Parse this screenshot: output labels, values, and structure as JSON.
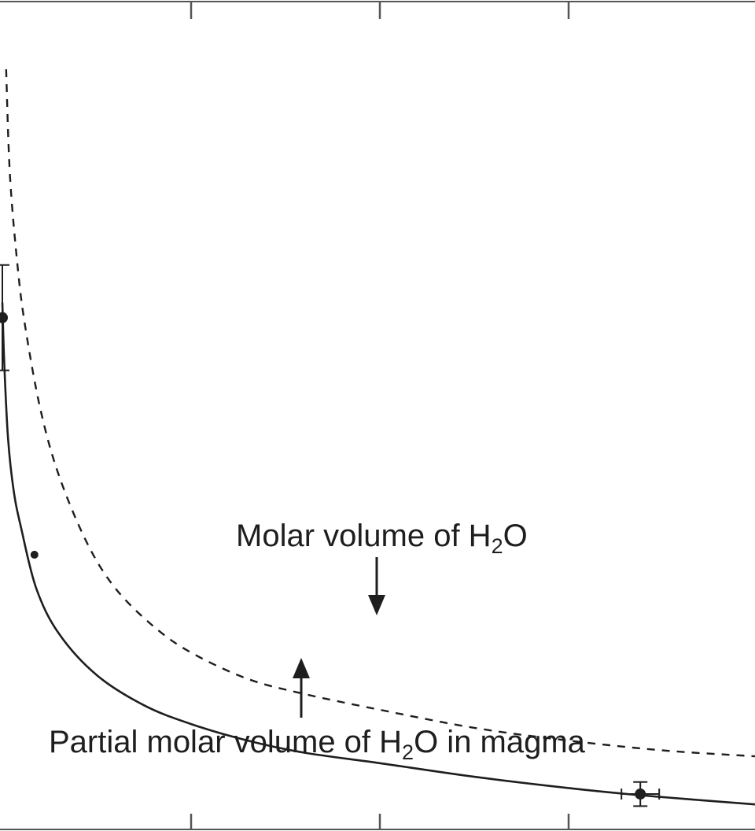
{
  "chart_data": {
    "type": "line",
    "title": "",
    "xlabel": "",
    "ylabel": "",
    "grid": false,
    "series": [
      {
        "name": "Molar volume of H₂O",
        "style": "dashed",
        "color": "#1e1e1e",
        "x": [
          0.02,
          0.04,
          0.08,
          0.12,
          0.2,
          0.3,
          0.45,
          0.6,
          0.8,
          1.0,
          1.3,
          1.6,
          1.98,
          2.5,
          3.0,
          3.5,
          4.0
        ],
        "y": [
          1.01,
          0.87,
          0.75,
          0.67,
          0.56,
          0.47,
          0.38,
          0.32,
          0.27,
          0.235,
          0.2,
          0.18,
          0.16,
          0.135,
          0.118,
          0.105,
          0.097
        ]
      },
      {
        "name": "Partial molar volume of H₂O in magma",
        "style": "solid",
        "color": "#1e1e1e",
        "x": [
          0.0,
          0.01,
          0.03,
          0.06,
          0.1,
          0.18,
          0.3,
          0.5,
          0.75,
          1.0,
          1.3,
          1.6,
          2.0,
          2.5,
          3.0,
          3.4,
          4.0
        ],
        "y": [
          0.7,
          0.62,
          0.52,
          0.45,
          0.4,
          0.32,
          0.26,
          0.205,
          0.165,
          0.14,
          0.118,
          0.102,
          0.088,
          0.07,
          0.055,
          0.045,
          0.033
        ]
      }
    ],
    "points": [
      {
        "x": 0.0,
        "y": 0.68,
        "yerr": 0.07,
        "xerr": 0.0
      },
      {
        "x": 0.17,
        "y": 0.365,
        "yerr": 0.0,
        "xerr": 0.0
      },
      {
        "x": 3.38,
        "y": 0.047,
        "yerr": 0.016,
        "xerr": 0.1
      }
    ],
    "annotations": [
      {
        "parts": [
          {
            "text": "Molar volume of H",
            "sub": false
          },
          {
            "text": "2",
            "sub": true
          },
          {
            "text": "O",
            "sub": false
          }
        ],
        "arrow_to_series": 0,
        "arrow_direction": "down"
      },
      {
        "parts": [
          {
            "text": "Partial molar volume of H",
            "sub": false
          },
          {
            "text": "2",
            "sub": true
          },
          {
            "text": "O in magma",
            "sub": false
          }
        ],
        "arrow_to_series": 1,
        "arrow_direction": "up"
      }
    ],
    "xlim": [
      0,
      4
    ],
    "ylim": [
      0,
      1.1
    ],
    "x_ticks": [
      1,
      2,
      3
    ],
    "x_tick_labels": [],
    "y_tick_labels": []
  }
}
